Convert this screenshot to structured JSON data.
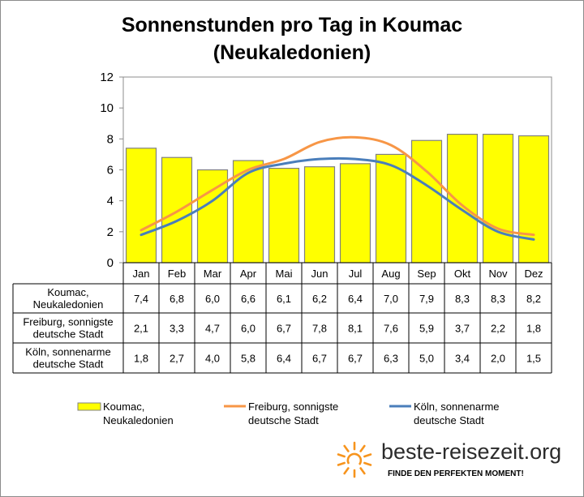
{
  "title_line1": "Sonnenstunden pro Tag in Koumac",
  "title_line2": "(Neukaledonien)",
  "chart_data": {
    "type": "bar",
    "ylim": [
      0,
      12
    ],
    "yticks": [
      "0",
      "2",
      "4",
      "6",
      "8",
      "10",
      "12"
    ],
    "categories": [
      "Jan",
      "Feb",
      "Mar",
      "Apr",
      "Mai",
      "Jun",
      "Jul",
      "Aug",
      "Sep",
      "Okt",
      "Nov",
      "Dez"
    ],
    "series": [
      {
        "name": "Koumac, Neukaledonien",
        "label_lines": [
          "Koumac,",
          "Neukaledonien"
        ],
        "type": "bar",
        "color": "#ffff00",
        "values": [
          7.4,
          6.8,
          6.0,
          6.6,
          6.1,
          6.2,
          6.4,
          7.0,
          7.9,
          8.3,
          8.3,
          8.2
        ],
        "labels": [
          "7,4",
          "6,8",
          "6,0",
          "6,6",
          "6,1",
          "6,2",
          "6,4",
          "7,0",
          "7,9",
          "8,3",
          "8,3",
          "8,2"
        ]
      },
      {
        "name": "Freiburg, sonnigste deutsche Stadt",
        "label_lines": [
          "Freiburg, sonnigste",
          "deutsche Stadt"
        ],
        "type": "line",
        "color": "#f79646",
        "values": [
          2.1,
          3.3,
          4.7,
          6.0,
          6.7,
          7.8,
          8.1,
          7.6,
          5.9,
          3.7,
          2.2,
          1.8
        ],
        "labels": [
          "2,1",
          "3,3",
          "4,7",
          "6,0",
          "6,7",
          "7,8",
          "8,1",
          "7,6",
          "5,9",
          "3,7",
          "2,2",
          "1,8"
        ]
      },
      {
        "name": "Köln, sonnenarme deutsche Stadt",
        "label_lines": [
          "Köln, sonnenarme",
          "deutsche Stadt"
        ],
        "type": "line",
        "color": "#4a7ebb",
        "values": [
          1.8,
          2.7,
          4.0,
          5.8,
          6.4,
          6.7,
          6.7,
          6.3,
          5.0,
          3.4,
          2.0,
          1.5
        ],
        "labels": [
          "1,8",
          "2,7",
          "4,0",
          "5,8",
          "6,4",
          "6,7",
          "6,7",
          "6,3",
          "5,0",
          "3,4",
          "2,0",
          "1,5"
        ]
      }
    ]
  },
  "table_row_labels": [
    [
      "Koumac,",
      "Neukaledonien"
    ],
    [
      "Freiburg, sonnigste",
      "deutsche Stadt"
    ],
    [
      "Köln, sonnenarme",
      "deutsche Stadt"
    ]
  ],
  "legend": [
    [
      "Koumac,",
      "Neukaledonien"
    ],
    [
      "Freiburg, sonnigste",
      "deutsche Stadt"
    ],
    [
      "Köln, sonnenarme",
      "deutsche Stadt"
    ]
  ],
  "logo": {
    "text": "beste-reisezeit.org",
    "slogan": "FINDE DEN PERFEKTEN MOMENT!",
    "sun_color": "#f7941d"
  }
}
